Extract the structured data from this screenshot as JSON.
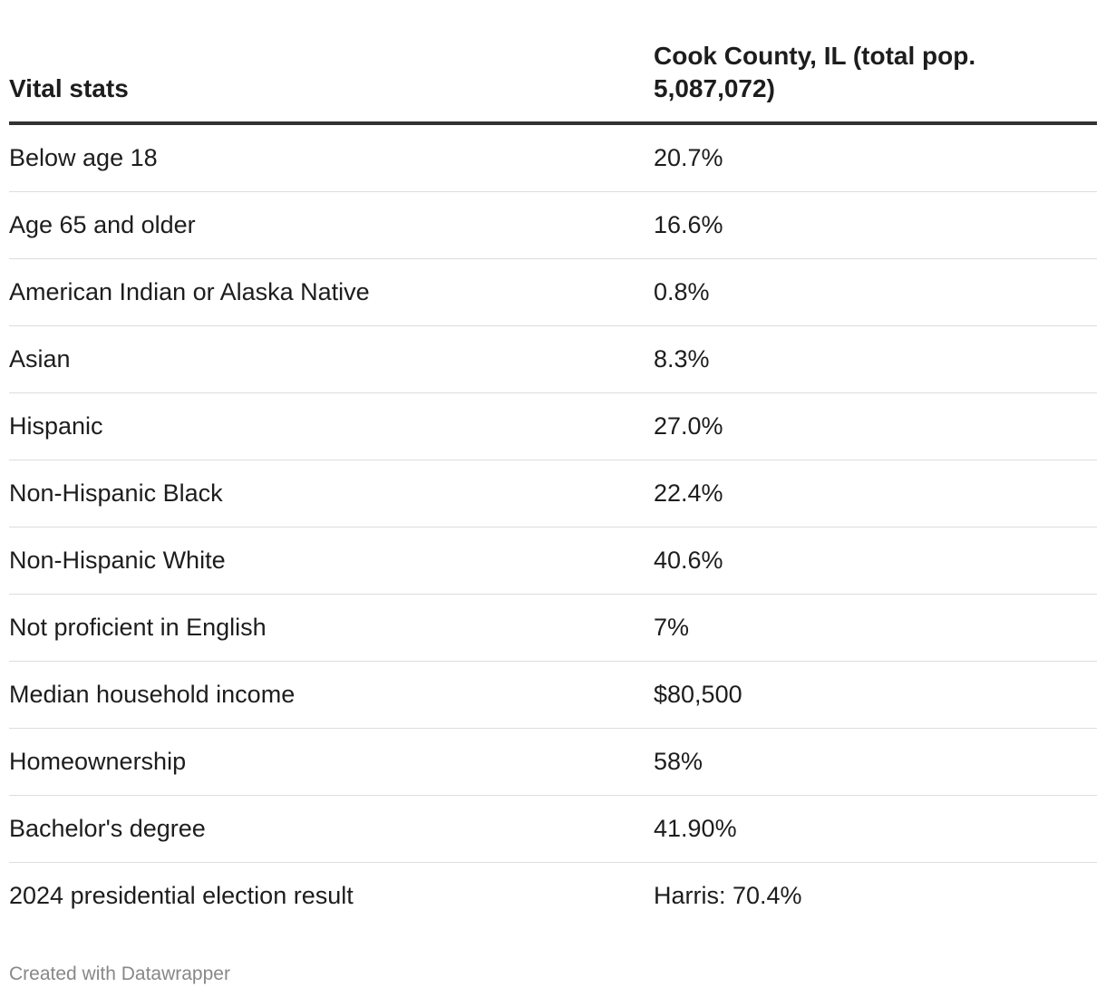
{
  "table": {
    "headers": [
      "Vital stats",
      "Cook County, IL (total pop. 5,087,072)"
    ],
    "rows": [
      {
        "stat": "Below age 18",
        "value": "20.7%"
      },
      {
        "stat": "Age 65 and older",
        "value": "16.6%"
      },
      {
        "stat": "American Indian or Alaska Native",
        "value": "0.8%"
      },
      {
        "stat": "Asian",
        "value": "8.3%"
      },
      {
        "stat": "Hispanic",
        "value": "27.0%"
      },
      {
        "stat": "Non-Hispanic Black",
        "value": "22.4%"
      },
      {
        "stat": "Non-Hispanic White",
        "value": "40.6%"
      },
      {
        "stat": "Not proficient in English",
        "value": "7%"
      },
      {
        "stat": "Median household income",
        "value": "$80,500"
      },
      {
        "stat": "Homeownership",
        "value": "58%"
      },
      {
        "stat": "Bachelor's degree",
        "value": "41.90%"
      },
      {
        "stat": "2024 presidential election result",
        "value": "Harris: 70.4%"
      }
    ]
  },
  "footer": {
    "credit": "Created with Datawrapper"
  }
}
